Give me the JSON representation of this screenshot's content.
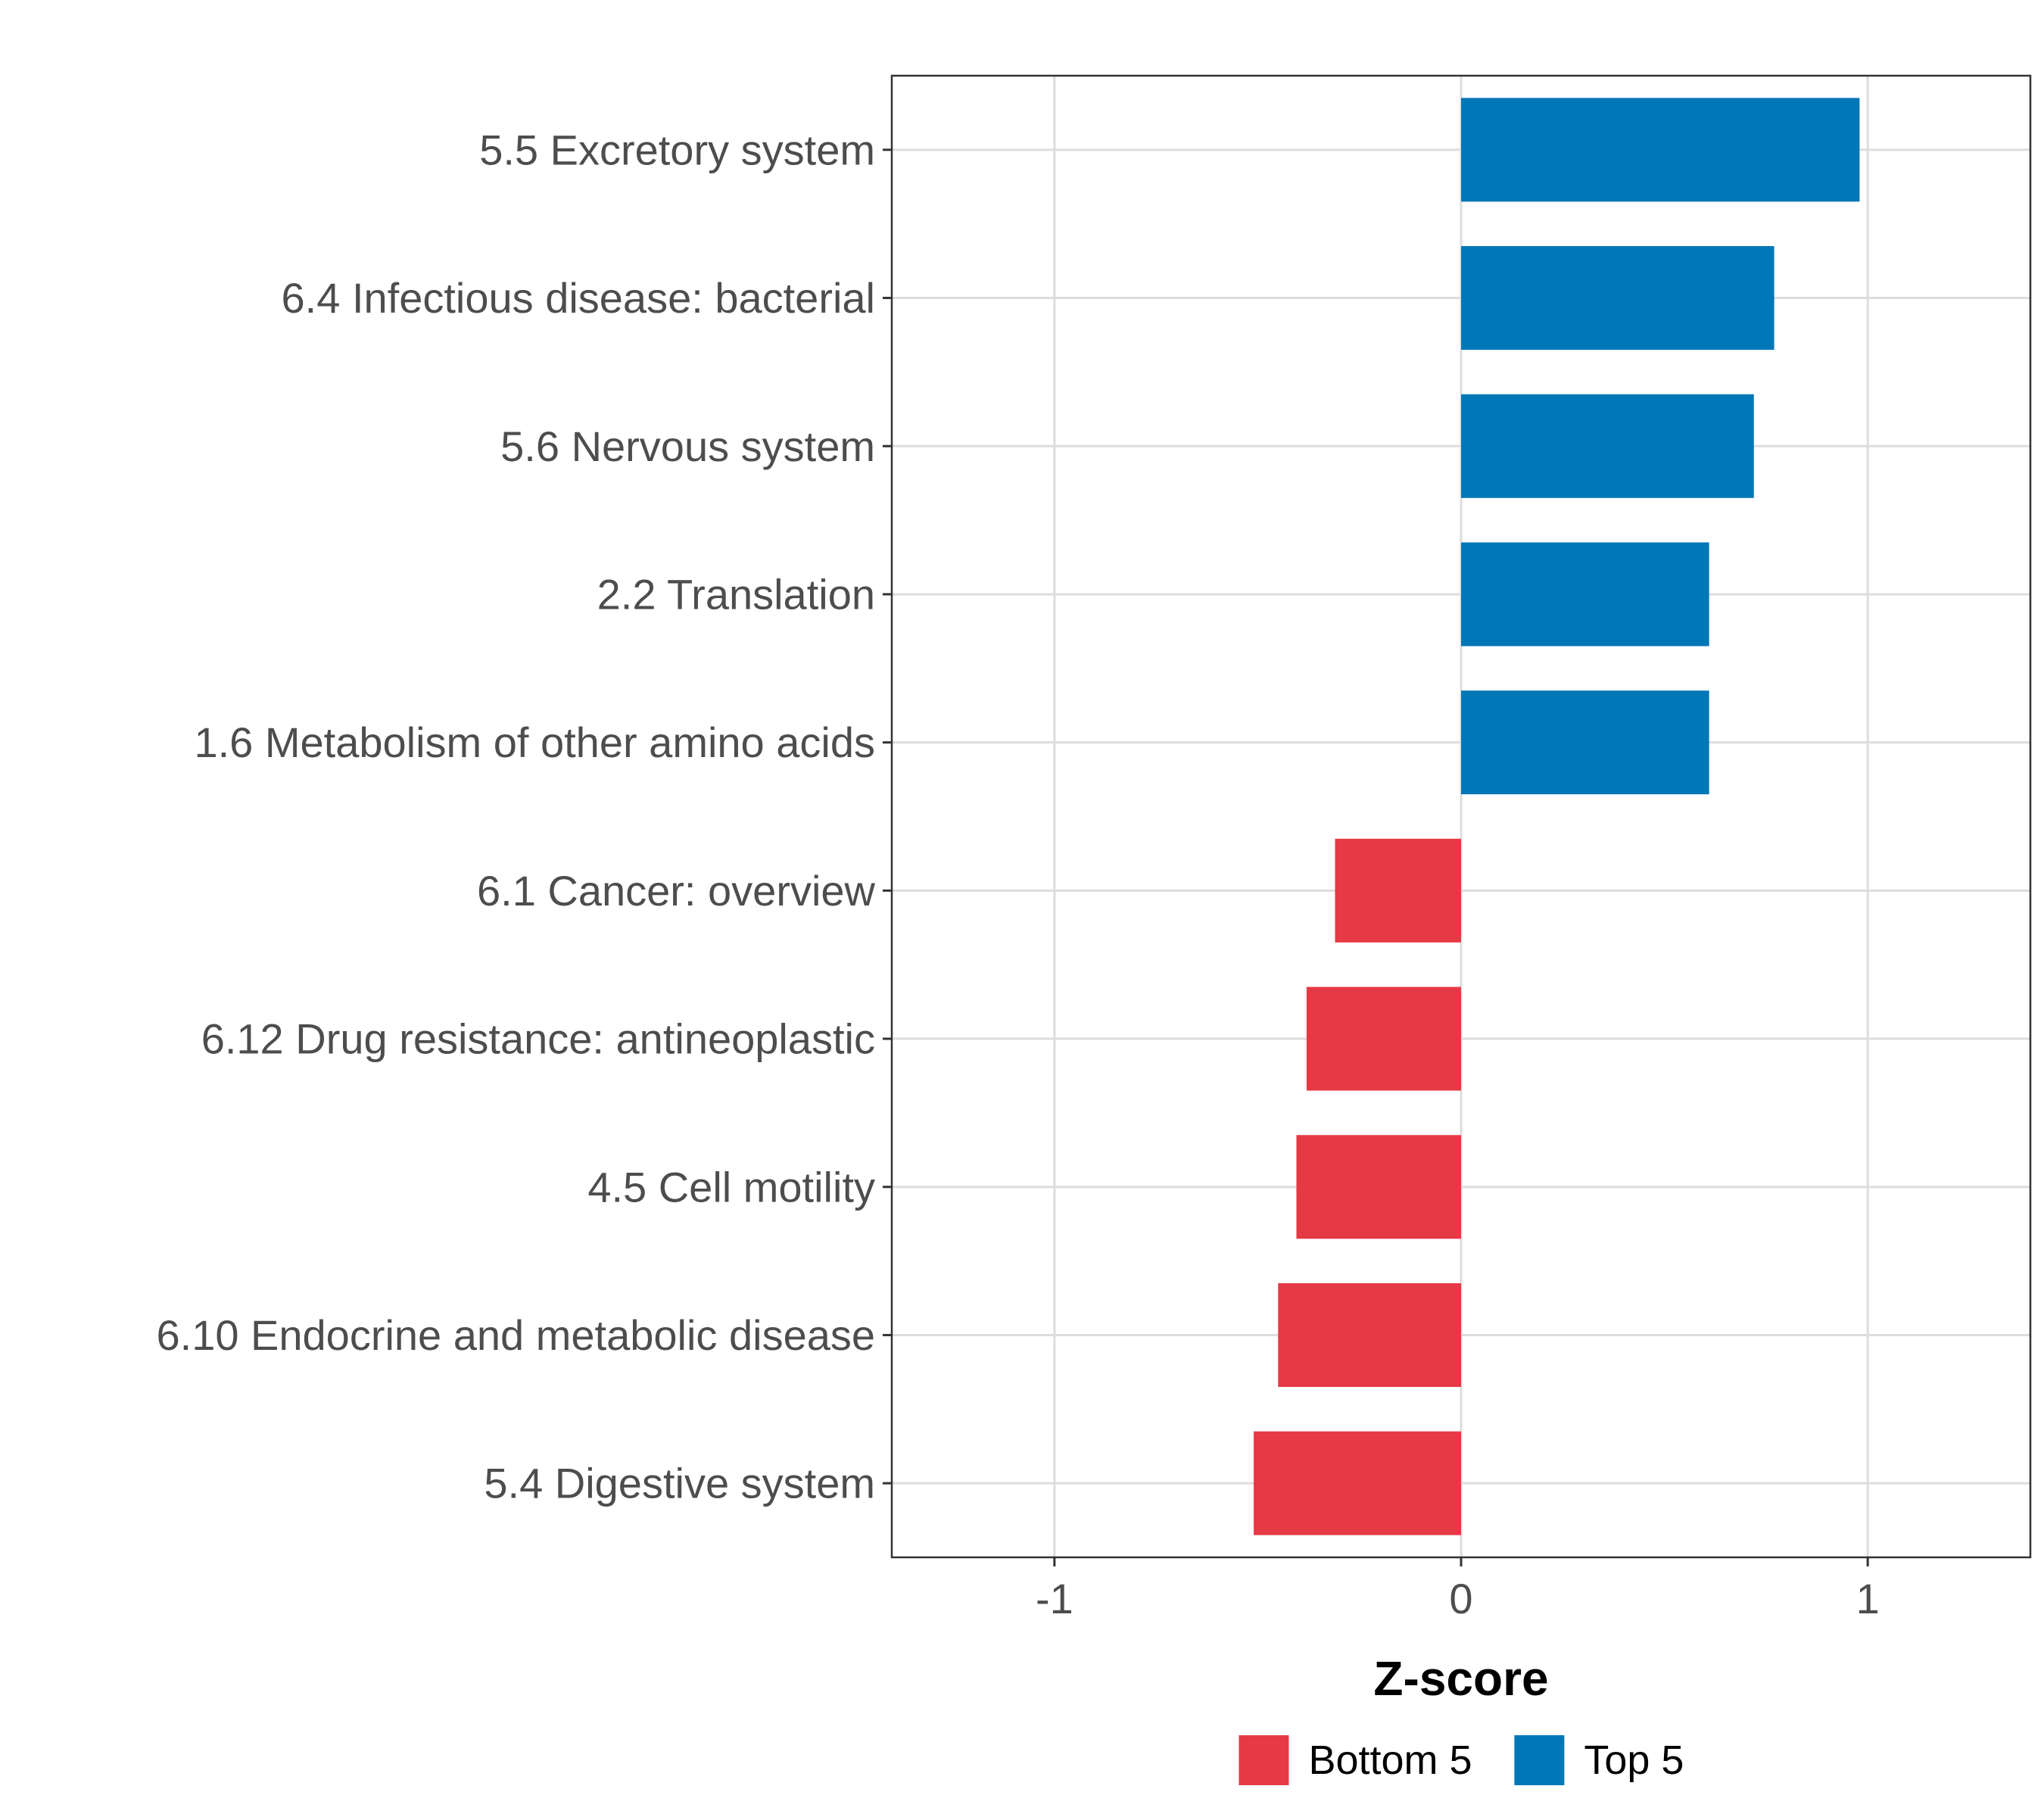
{
  "chart_data": {
    "type": "bar",
    "orientation": "horizontal",
    "title": "",
    "xlabel": "Z-score",
    "ylabel": "",
    "xlim": [
      -1.4,
      1.4
    ],
    "x_ticks": [
      -1,
      0,
      1
    ],
    "x_tick_labels": [
      "-1",
      "0",
      "1"
    ],
    "grid": true,
    "legend_position": "bottom",
    "categories": [
      "5.5 Excretory system",
      "6.4 Infectious disease: bacterial",
      "5.6 Nervous system",
      "2.2 Translation",
      "1.6 Metabolism of other amino acids",
      "6.1 Cancer: overview",
      "6.12 Drug resistance: antineoplastic",
      "4.5 Cell motility",
      "6.10 Endocrine and metabolic disease",
      "5.4 Digestive system"
    ],
    "values": [
      0.98,
      0.77,
      0.72,
      0.61,
      0.61,
      -0.31,
      -0.38,
      -0.405,
      -0.45,
      -0.51
    ],
    "groups": [
      "Top 5",
      "Top 5",
      "Top 5",
      "Top 5",
      "Top 5",
      "Bottom 5",
      "Bottom 5",
      "Bottom 5",
      "Bottom 5",
      "Bottom 5"
    ],
    "legend": [
      {
        "name": "Bottom 5",
        "color": "#E63946"
      },
      {
        "name": "Top 5",
        "color": "#0077B6"
      }
    ]
  }
}
